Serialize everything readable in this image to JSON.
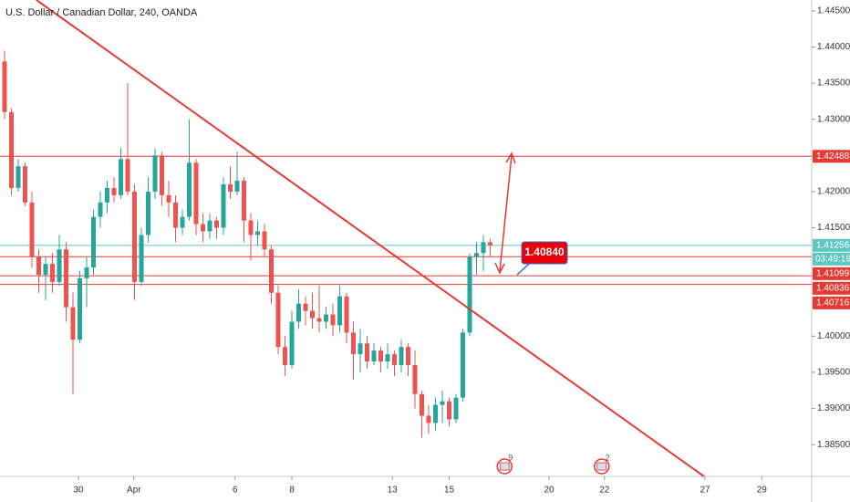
{
  "chart_data": {
    "type": "candlestick",
    "title": "U.S. Dollar / Canadian Dollar, 240, OANDA",
    "up_color": "#26a69a",
    "down_color": "#ef5350",
    "open": [
      1.438,
      1.431,
      1.4205,
      1.4235,
      1.4185,
      1.411,
      1.4085,
      1.41,
      1.4075,
      1.412,
      1.404,
      1.3995,
      1.408,
      1.4095,
      1.4165,
      1.4185,
      1.4205,
      1.4195,
      1.4245,
      1.42,
      1.4075,
      1.414,
      1.42,
      1.425,
      1.4195,
      1.4185,
      1.415,
      1.4165,
      1.424,
      1.4155,
      1.4145,
      1.416,
      1.415,
      1.421,
      1.42,
      1.4215,
      1.416,
      1.414,
      1.4145,
      1.412,
      1.406,
      1.3985,
      1.396,
      1.402,
      1.4045,
      1.4035,
      1.4025,
      1.402,
      1.403,
      1.4015,
      1.4055,
      1.4005,
      1.3975,
      1.399,
      1.3965,
      1.398,
      1.3965,
      1.3975,
      1.396,
      1.3985,
      1.396,
      1.392,
      1.389,
      1.388,
      1.3905,
      1.391,
      1.3885,
      1.3915,
      1.4005,
      1.411,
      1.4115,
      1.413
    ],
    "high": [
      1.4395,
      1.4315,
      1.4245,
      1.424,
      1.42,
      1.412,
      1.411,
      1.4115,
      1.414,
      1.413,
      1.406,
      1.409,
      1.411,
      1.4175,
      1.42,
      1.4215,
      1.422,
      1.426,
      1.435,
      1.421,
      1.415,
      1.422,
      1.426,
      1.4255,
      1.4215,
      1.4195,
      1.4175,
      1.43,
      1.4245,
      1.417,
      1.417,
      1.4165,
      1.422,
      1.4235,
      1.4255,
      1.422,
      1.417,
      1.416,
      1.4155,
      1.4125,
      1.407,
      1.4,
      1.4035,
      1.4065,
      1.4055,
      1.406,
      1.407,
      1.404,
      1.4045,
      1.407,
      1.406,
      1.402,
      1.401,
      1.4,
      1.399,
      1.3985,
      1.399,
      1.398,
      1.3995,
      1.399,
      1.398,
      1.3925,
      1.3905,
      1.3915,
      1.3925,
      1.3915,
      1.392,
      1.401,
      1.4115,
      1.413,
      1.414,
      1.4135
    ],
    "low": [
      1.43,
      1.4195,
      1.42,
      1.418,
      1.4095,
      1.406,
      1.405,
      1.406,
      1.407,
      1.402,
      1.392,
      1.399,
      1.404,
      1.4085,
      1.415,
      1.417,
      1.4185,
      1.419,
      1.4195,
      1.405,
      1.407,
      1.413,
      1.419,
      1.418,
      1.4165,
      1.413,
      1.414,
      1.416,
      1.414,
      1.413,
      1.4135,
      1.4135,
      1.414,
      1.419,
      1.4195,
      1.413,
      1.4105,
      1.4125,
      1.411,
      1.4045,
      1.3975,
      1.3945,
      1.3955,
      1.401,
      1.4015,
      1.401,
      1.4005,
      1.401,
      1.4,
      1.4005,
      1.399,
      1.394,
      1.395,
      1.3955,
      1.396,
      1.395,
      1.3955,
      1.3945,
      1.395,
      1.3945,
      1.39,
      1.386,
      1.3865,
      1.387,
      1.388,
      1.3875,
      1.388,
      1.391,
      1.4,
      1.4085,
      1.409,
      1.411
    ],
    "close": [
      1.431,
      1.4205,
      1.4235,
      1.4185,
      1.411,
      1.4085,
      1.41,
      1.4075,
      1.412,
      1.404,
      1.3995,
      1.408,
      1.4095,
      1.4165,
      1.4185,
      1.4205,
      1.4195,
      1.4245,
      1.42,
      1.4075,
      1.414,
      1.42,
      1.425,
      1.4195,
      1.4185,
      1.415,
      1.4165,
      1.424,
      1.4155,
      1.4145,
      1.416,
      1.415,
      1.421,
      1.42,
      1.4215,
      1.416,
      1.414,
      1.4145,
      1.412,
      1.406,
      1.3985,
      1.396,
      1.402,
      1.4045,
      1.4035,
      1.4025,
      1.402,
      1.403,
      1.4015,
      1.4055,
      1.4005,
      1.3975,
      1.399,
      1.3965,
      1.398,
      1.3965,
      1.3975,
      1.396,
      1.3985,
      1.396,
      1.392,
      1.389,
      1.388,
      1.3905,
      1.391,
      1.3885,
      1.3915,
      1.4005,
      1.411,
      1.4115,
      1.413,
      1.41256
    ],
    "ylim": [
      1.3806,
      1.4465
    ],
    "yticks": [
      {
        "value": 1.445,
        "label": "1.44500"
      },
      {
        "value": 1.44,
        "label": "1.44000"
      },
      {
        "value": 1.435,
        "label": "1.43500"
      },
      {
        "value": 1.43,
        "label": "1.43000"
      },
      {
        "value": 1.42,
        "label": "1.42000"
      },
      {
        "value": 1.415,
        "label": "1.41500"
      },
      {
        "value": 1.4,
        "label": "1.40000"
      },
      {
        "value": 1.395,
        "label": "1.39500"
      },
      {
        "value": 1.39,
        "label": "1.39000"
      },
      {
        "value": 1.385,
        "label": "1.38500"
      }
    ],
    "xlim": [
      -0.667,
      118
    ],
    "xticks": [
      {
        "value": 10.8,
        "label": "30"
      },
      {
        "value": 18.9,
        "label": "Apr"
      },
      {
        "value": 33.7,
        "label": "6"
      },
      {
        "value": 42,
        "label": "8"
      },
      {
        "value": 56.7,
        "label": "13"
      },
      {
        "value": 65,
        "label": "15"
      },
      {
        "value": 79.6,
        "label": "20"
      },
      {
        "value": 87.7,
        "label": "22"
      },
      {
        "value": 102.4,
        "label": "27"
      },
      {
        "value": 110.7,
        "label": "29"
      }
    ],
    "hlines": [
      {
        "value": 1.42488,
        "color": "#e53935"
      },
      {
        "value": 1.41256,
        "color": "#5fc7c0"
      },
      {
        "value": 1.41099,
        "color": "#e53935"
      },
      {
        "value": 1.40836,
        "color": "#e53935"
      },
      {
        "value": 1.40716,
        "color": "#e53935"
      }
    ],
    "countdown": "03:49:19",
    "annotation": "1.40840",
    "events": [
      {
        "value": 73.1,
        "label": "9"
      },
      {
        "value": 87.3,
        "label": "2"
      }
    ]
  }
}
